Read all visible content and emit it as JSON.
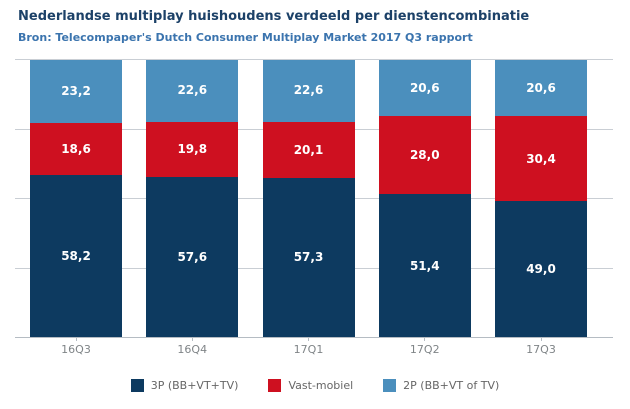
{
  "header": {
    "title": "Nederlandse multiplay huishoudens verdeeld per dienstencombinatie",
    "subtitle": "Bron: Telecompaper's Dutch Consumer Multiplay Market 2017 Q3 rapport"
  },
  "colors": {
    "title": "#1c4168",
    "subtitle": "#3b74ae",
    "gridline": "#c9ced4",
    "axis": "#b5bcc3",
    "tick_label": "#7f8487",
    "legend_text": "#666666"
  },
  "chart_data": {
    "type": "bar",
    "variant": "stacked-percentage",
    "title": "Nederlandse multiplay huishoudens verdeeld per dienstencombinatie",
    "subtitle": "Bron: Telecompaper's Dutch Consumer Multiplay Market 2017 Q3 rapport",
    "categories": [
      "16Q3",
      "16Q4",
      "17Q1",
      "17Q2",
      "17Q3"
    ],
    "series": [
      {
        "name": "3P (BB+VT+TV)",
        "color": "#0d3a60",
        "values": [
          58.2,
          57.6,
          57.3,
          51.4,
          49.0
        ],
        "labels": [
          "58,2",
          "57,6",
          "57,3",
          "51,4",
          "49,0"
        ]
      },
      {
        "name": "Vast-mobiel",
        "color": "#ce1020",
        "values": [
          18.6,
          19.8,
          20.1,
          28.0,
          30.4
        ],
        "labels": [
          "18,6",
          "19,8",
          "20,1",
          "28,0",
          "30,4"
        ]
      },
      {
        "name": "2P (BB+VT of TV)",
        "color": "#4b8fbd",
        "values": [
          23.2,
          22.6,
          22.6,
          20.6,
          20.6
        ],
        "labels": [
          "23,2",
          "22,6",
          "22,6",
          "20,6",
          "20,6"
        ]
      }
    ],
    "stack_order_bottom_to_top": [
      "3P (BB+VT+TV)",
      "Vast-mobiel",
      "2P (BB+VT of TV)"
    ],
    "xlabel": "",
    "ylabel": "",
    "ylim": [
      0,
      100
    ],
    "grid": true,
    "gridline_interval": 25,
    "y_axis_labels_visible": false,
    "value_labels": "inside-center, white, comma-decimal",
    "legend_position": "bottom"
  }
}
